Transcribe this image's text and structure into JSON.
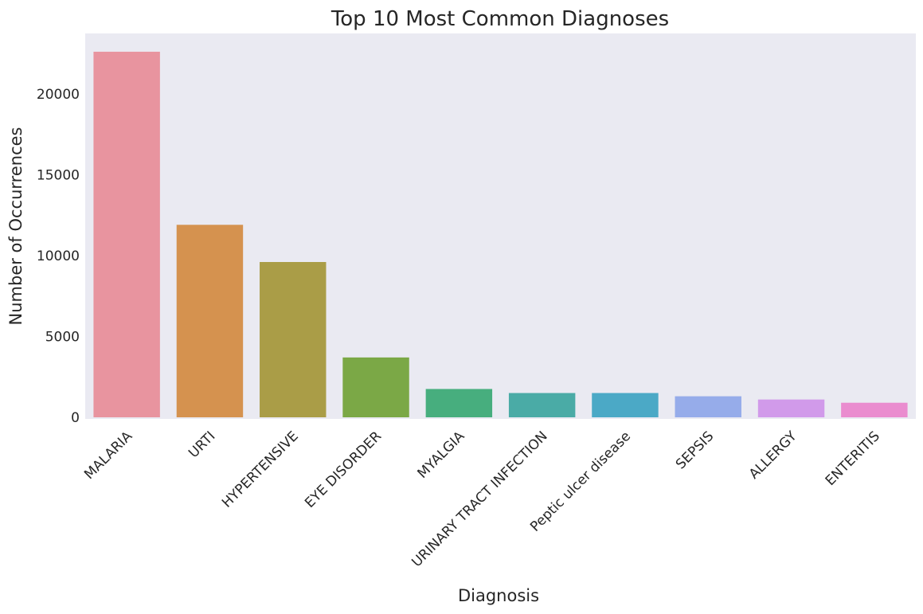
{
  "chart_data": {
    "type": "bar",
    "title": "Top 10 Most Common Diagnoses",
    "xlabel": "Diagnosis",
    "ylabel": "Number of Occurrences",
    "categories": [
      "MALARIA",
      "URTI",
      "HYPERTENSIVE",
      "EYE DISORDER",
      "MYALGIA",
      "URINARY TRACT INFECTION",
      "Peptic ulcer disease",
      "SEPSIS",
      "ALLERGY",
      "ENTERITIS"
    ],
    "values": [
      22600,
      11900,
      9600,
      3700,
      1750,
      1500,
      1500,
      1300,
      1100,
      900
    ],
    "colors": [
      "#e8949f",
      "#d5924f",
      "#aa9d47",
      "#7ba846",
      "#47ae7e",
      "#4aaba6",
      "#4ba9c6",
      "#96acea",
      "#d19aea",
      "#ea8ccf"
    ],
    "yticks": [
      0,
      5000,
      10000,
      15000,
      20000
    ],
    "ylim": [
      0,
      23730
    ],
    "grid": false,
    "background": "#eaeaf2"
  }
}
